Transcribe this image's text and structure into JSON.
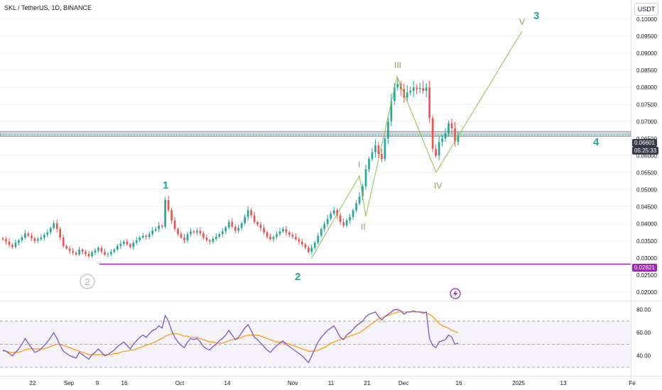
{
  "header": {
    "title": "SKL / TetherUS, 1D, BINANCE",
    "currency": "USDT"
  },
  "colors": {
    "up": "#26a69a",
    "down": "#ef5350",
    "rsi_line": "#7e57c2",
    "rsi_ma": "#ff9800",
    "support": "#9c27b0",
    "wave_lines": "#8bc34a",
    "resistance_band": "#b2b5be"
  },
  "price_axis": {
    "ticks": [
      "0.10000",
      "0.09500",
      "0.09000",
      "0.08500",
      "0.08000",
      "0.07500",
      "0.07000",
      "0.06500",
      "0.06000",
      "0.05500",
      "0.05000",
      "0.04500",
      "0.04000",
      "0.03500",
      "0.03000",
      "0.02500",
      "0.02000"
    ],
    "current_price": "0.06601",
    "countdown": "05:25:33",
    "support_price": "0.02821"
  },
  "rsi_axis": {
    "ticks": [
      "80.00",
      "60.00",
      "40.00"
    ]
  },
  "time_axis": {
    "labels": [
      "22",
      "Sep",
      "9",
      "16",
      "Oct",
      "14",
      "Nov",
      "11",
      "21",
      "Dec",
      "16",
      "2025",
      "13",
      "Fe"
    ]
  },
  "wave_labels": {
    "main": [
      "1",
      "2",
      "3",
      "4"
    ],
    "sub": [
      "I",
      "II",
      "III",
      "IV",
      "V"
    ],
    "circled": "2"
  },
  "chart_data": {
    "type": "candlestick",
    "symbol": "SKL / TetherUS",
    "interval": "1D",
    "exchange": "BINANCE",
    "close_series": [
      0.0355,
      0.0348,
      0.0338,
      0.0332,
      0.0345,
      0.0352,
      0.036,
      0.0372,
      0.0365,
      0.0358,
      0.035,
      0.0355,
      0.036,
      0.0368,
      0.0375,
      0.0388,
      0.0402,
      0.0385,
      0.036,
      0.0335,
      0.0328,
      0.032,
      0.0315,
      0.031,
      0.0325,
      0.0318,
      0.0312,
      0.0305,
      0.0316,
      0.0322,
      0.033,
      0.0318,
      0.031,
      0.0312,
      0.0318,
      0.0325,
      0.0335,
      0.0342,
      0.0348,
      0.034,
      0.0332,
      0.0345,
      0.0352,
      0.036,
      0.0365,
      0.0362,
      0.037,
      0.038,
      0.0385,
      0.0395,
      0.0392,
      0.047,
      0.044,
      0.041,
      0.0385,
      0.037,
      0.036,
      0.0352,
      0.037,
      0.0378,
      0.0375,
      0.038,
      0.0372,
      0.036,
      0.0352,
      0.0348,
      0.0356,
      0.0362,
      0.037,
      0.0378,
      0.039,
      0.0405,
      0.0392,
      0.038,
      0.0388,
      0.0402,
      0.042,
      0.044,
      0.0425,
      0.0405,
      0.0398,
      0.0388,
      0.0375,
      0.0362,
      0.0355,
      0.0362,
      0.037,
      0.0378,
      0.0385,
      0.0375,
      0.0368,
      0.0362,
      0.0355,
      0.0348,
      0.034,
      0.033,
      0.0318,
      0.033,
      0.0345,
      0.0365,
      0.0385,
      0.04,
      0.0415,
      0.043,
      0.044,
      0.0425,
      0.0405,
      0.0395,
      0.041,
      0.042,
      0.044,
      0.046,
      0.048,
      0.051,
      0.056,
      0.059,
      0.061,
      0.063,
      0.0605,
      0.059,
      0.065,
      0.07,
      0.076,
      0.08,
      0.081,
      0.0795,
      0.077,
      0.0785,
      0.079,
      0.08,
      0.0795,
      0.0798,
      0.079,
      0.08,
      0.071,
      0.062,
      0.06,
      0.064,
      0.065,
      0.0665,
      0.0695,
      0.068,
      0.064,
      0.066
    ],
    "rsi_series": [
      45,
      44,
      42,
      40,
      43,
      46,
      50,
      55,
      51,
      47,
      43,
      44,
      46,
      49,
      52,
      56,
      60,
      55,
      49,
      44,
      42,
      40,
      39,
      38,
      43,
      41,
      39,
      37,
      41,
      43,
      46,
      43,
      40,
      41,
      43,
      45,
      48,
      50,
      52,
      49,
      46,
      50,
      53,
      56,
      58,
      56,
      59,
      62,
      63,
      66,
      64,
      75,
      70,
      62,
      56,
      52,
      49,
      47,
      52,
      55,
      54,
      55,
      52,
      48,
      46,
      45,
      48,
      50,
      53,
      55,
      58,
      62,
      58,
      54,
      56,
      60,
      64,
      67,
      62,
      56,
      54,
      51,
      48,
      45,
      43,
      46,
      49,
      51,
      53,
      50,
      48,
      46,
      44,
      42,
      40,
      37,
      34,
      40,
      46,
      52,
      56,
      59,
      62,
      64,
      66,
      61,
      56,
      54,
      58,
      60,
      63,
      66,
      68,
      70,
      74,
      76,
      77,
      78,
      74,
      71,
      74,
      76,
      78,
      80,
      80,
      79,
      76,
      78,
      78,
      79,
      78,
      78,
      77,
      78,
      55,
      49,
      47,
      52,
      53,
      54,
      58,
      56,
      50,
      51
    ],
    "rsi_ma_series": [
      44,
      44,
      43,
      43,
      43,
      43,
      44,
      45,
      46,
      46,
      46,
      46,
      46,
      46,
      47,
      48,
      49,
      50,
      50,
      49,
      48,
      47,
      46,
      45,
      44,
      43,
      42,
      41,
      41,
      41,
      41,
      41,
      41,
      41,
      41,
      42,
      42,
      43,
      44,
      44,
      45,
      45,
      46,
      47,
      48,
      49,
      50,
      51,
      52,
      54,
      55,
      57,
      58,
      59,
      59,
      59,
      58,
      57,
      57,
      56,
      56,
      56,
      55,
      54,
      53,
      52,
      52,
      51,
      51,
      51,
      52,
      53,
      54,
      54,
      55,
      56,
      57,
      58,
      58,
      58,
      58,
      57,
      56,
      55,
      54,
      53,
      52,
      52,
      51,
      51,
      50,
      49,
      48,
      47,
      46,
      45,
      44,
      44,
      44,
      45,
      46,
      47,
      49,
      51,
      52,
      53,
      54,
      55,
      56,
      57,
      58,
      59,
      60,
      62,
      64,
      66,
      68,
      70,
      72,
      73,
      74,
      75,
      76,
      77,
      78,
      78,
      78,
      78,
      78,
      78,
      78,
      78,
      78,
      77,
      76,
      74,
      71,
      68,
      66,
      65,
      64,
      62,
      61,
      60
    ],
    "price_range": [
      0.0175,
      0.1056
    ],
    "rsi_range": [
      22.6,
      87.2
    ],
    "rsi_levels": [
      70,
      50,
      30
    ],
    "current_price": 0.06601,
    "resistance_zone": [
      0.0656,
      0.0671
    ],
    "support_level": 0.02821
  }
}
